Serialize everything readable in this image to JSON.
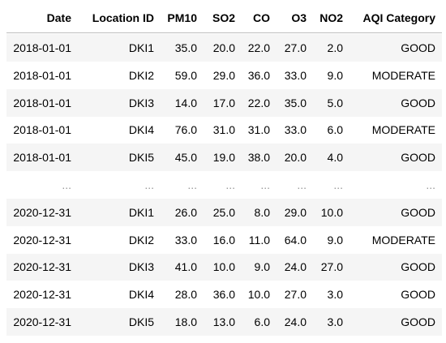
{
  "table": {
    "columns": [
      "Date",
      "Location ID",
      "PM10",
      "SO2",
      "CO",
      "O3",
      "NO2",
      "AQI Category"
    ],
    "rows": [
      [
        "2018-01-01",
        "DKI1",
        "35.0",
        "20.0",
        "22.0",
        "27.0",
        "2.0",
        "GOOD"
      ],
      [
        "2018-01-01",
        "DKI2",
        "59.0",
        "29.0",
        "36.0",
        "33.0",
        "9.0",
        "MODERATE"
      ],
      [
        "2018-01-01",
        "DKI3",
        "14.0",
        "17.0",
        "22.0",
        "35.0",
        "5.0",
        "GOOD"
      ],
      [
        "2018-01-01",
        "DKI4",
        "76.0",
        "31.0",
        "31.0",
        "33.0",
        "6.0",
        "MODERATE"
      ],
      [
        "2018-01-01",
        "DKI5",
        "45.0",
        "19.0",
        "38.0",
        "20.0",
        "4.0",
        "GOOD"
      ],
      [
        "...",
        "...",
        "...",
        "...",
        "...",
        "...",
        "...",
        "..."
      ],
      [
        "2020-12-31",
        "DKI1",
        "26.0",
        "25.0",
        "8.0",
        "29.0",
        "10.0",
        "GOOD"
      ],
      [
        "2020-12-31",
        "DKI2",
        "33.0",
        "16.0",
        "11.0",
        "64.0",
        "9.0",
        "MODERATE"
      ],
      [
        "2020-12-31",
        "DKI3",
        "41.0",
        "10.0",
        "9.0",
        "24.0",
        "27.0",
        "GOOD"
      ],
      [
        "2020-12-31",
        "DKI4",
        "28.0",
        "36.0",
        "10.0",
        "27.0",
        "3.0",
        "GOOD"
      ],
      [
        "2020-12-31",
        "DKI5",
        "18.0",
        "13.0",
        "6.0",
        "24.0",
        "3.0",
        "GOOD"
      ]
    ]
  }
}
